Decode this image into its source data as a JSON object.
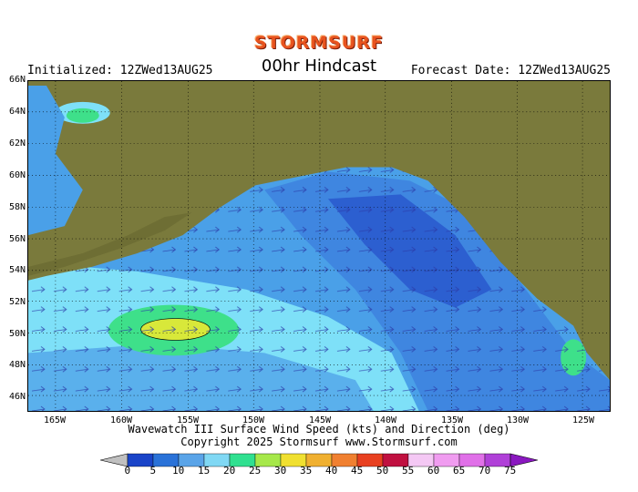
{
  "brand": "STORMSURF",
  "header": {
    "initialized": "Initialized: 12ZWed13AUG25",
    "title": "00hr Hindcast",
    "forecast_date": "Forecast Date: 12ZWed13AUG25"
  },
  "map": {
    "lat_labels": [
      "66N",
      "64N",
      "62N",
      "60N",
      "58N",
      "56N",
      "54N",
      "52N",
      "50N",
      "48N",
      "46N"
    ],
    "lon_labels": [
      "165W",
      "160W",
      "155W",
      "150W",
      "145W",
      "140W",
      "135W",
      "130W",
      "125W"
    ],
    "colors": {
      "land": "#7a7a3c",
      "water_light": "#4aa0e8",
      "water_cyan": "#7ee0f8",
      "water_mid": "#3f86e0",
      "water_dark": "#2c5fd0",
      "green": "#3ee08a",
      "yellow": "#d8e83a"
    }
  },
  "caption": {
    "line1": "Wavewatch III Surface Wind Speed (kts) and Direction (deg)",
    "line2": "Copyright 2025 Stormsurf  www.Stormsurf.com"
  },
  "legend": {
    "labels": [
      "0",
      "5",
      "10",
      "15",
      "20",
      "25",
      "30",
      "35",
      "40",
      "45",
      "50",
      "55",
      "60",
      "65",
      "70",
      "75"
    ],
    "colors": [
      "#1a44c8",
      "#2a72d8",
      "#5aa4e8",
      "#80d8f4",
      "#30e090",
      "#a6e84a",
      "#f0e030",
      "#f0b030",
      "#f08030",
      "#e84020",
      "#c01040",
      "#f4c8f4",
      "#f09cf0",
      "#e070e8",
      "#b040d8"
    ]
  }
}
